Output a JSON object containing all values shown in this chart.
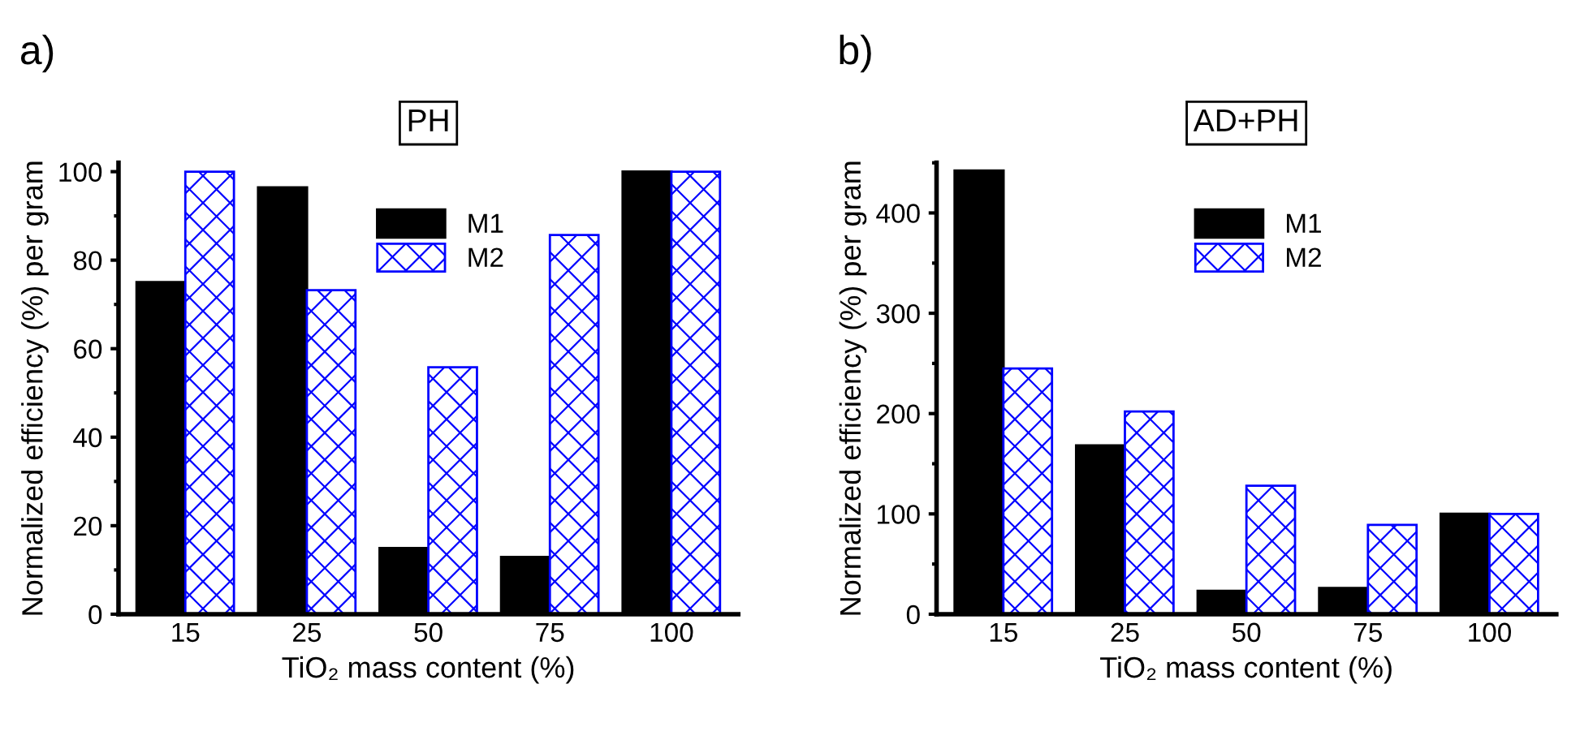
{
  "chart_data": [
    {
      "type": "bar",
      "title": "PH",
      "annotations": [
        "a)"
      ],
      "xlabel": "TiO₂ mass content (%)",
      "ylabel": "Normalized efficiency (%) per gram",
      "categories": [
        "15",
        "25",
        "50",
        "75",
        "100"
      ],
      "series": [
        {
          "name": "M1",
          "color": "#000000",
          "values": [
            75,
            96.4,
            14.9,
            12.9,
            100
          ]
        },
        {
          "name": "M2",
          "color": "#0000ff",
          "values": [
            100,
            73.2,
            55.8,
            85.7,
            100
          ]
        }
      ],
      "ylim": [
        0,
        102
      ],
      "yticks": [
        0,
        20,
        40,
        60,
        80,
        100
      ],
      "grid": false,
      "legend": "top"
    },
    {
      "type": "bar",
      "title": "AD+PH",
      "annotations": [
        "b)"
      ],
      "xlabel": "TiO₂ mass content (%)",
      "ylabel": "Normalized efficiency (%) per gram",
      "categories": [
        "15",
        "25",
        "50",
        "75",
        "100"
      ],
      "series": [
        {
          "name": "M1",
          "color": "#000000",
          "values": [
            442,
            168,
            23,
            26,
            100
          ]
        },
        {
          "name": "M2",
          "color": "#0000ff",
          "values": [
            245,
            202,
            128,
            89,
            100
          ]
        }
      ],
      "ylim": [
        0,
        450
      ],
      "yticks": [
        0,
        100,
        200,
        300,
        400
      ],
      "grid": false,
      "legend": "top"
    }
  ]
}
